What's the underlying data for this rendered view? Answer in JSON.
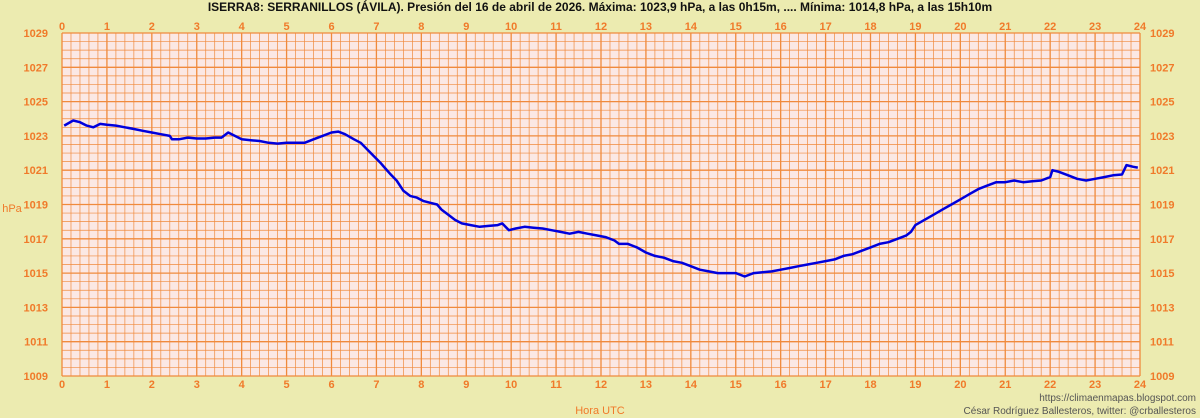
{
  "chart_data": {
    "type": "line",
    "title": "ISERRA8: SERRANILLOS (ÁVILA). Presión del 16 de abril de 2026. Máxima: 1023,9 hPa, a las 0h15m, .... Mínima: 1014,8 hPa, a las 15h10m",
    "xlabel": "Hora UTC",
    "ylabel": "hPa",
    "xlim": [
      0,
      24
    ],
    "ylim": [
      1009,
      1029
    ],
    "x_ticks": [
      "0",
      "1",
      "2",
      "3",
      "4",
      "5",
      "6",
      "7",
      "8",
      "9",
      "10",
      "11",
      "12",
      "13",
      "14",
      "15",
      "16",
      "17",
      "18",
      "19",
      "20",
      "21",
      "22",
      "23",
      "24"
    ],
    "y_ticks": [
      "1009",
      "1011",
      "1013",
      "1015",
      "1017",
      "1019",
      "1021",
      "1023",
      "1025",
      "1027",
      "1029"
    ],
    "grid": true,
    "series": [
      {
        "color": "#0000dd",
        "points": [
          [
            0.05,
            1023.6
          ],
          [
            0.25,
            1023.9
          ],
          [
            0.4,
            1023.8
          ],
          [
            0.55,
            1023.6
          ],
          [
            0.7,
            1023.5
          ],
          [
            0.85,
            1023.7
          ],
          [
            1.0,
            1023.65
          ],
          [
            1.2,
            1023.6
          ],
          [
            1.4,
            1023.5
          ],
          [
            1.6,
            1023.4
          ],
          [
            1.8,
            1023.3
          ],
          [
            2.0,
            1023.2
          ],
          [
            2.2,
            1023.1
          ],
          [
            2.4,
            1023.0
          ],
          [
            2.45,
            1022.8
          ],
          [
            2.6,
            1022.8
          ],
          [
            2.8,
            1022.9
          ],
          [
            3.0,
            1022.85
          ],
          [
            3.2,
            1022.85
          ],
          [
            3.4,
            1022.9
          ],
          [
            3.55,
            1022.9
          ],
          [
            3.7,
            1023.2
          ],
          [
            3.85,
            1023.0
          ],
          [
            4.0,
            1022.8
          ],
          [
            4.2,
            1022.75
          ],
          [
            4.4,
            1022.7
          ],
          [
            4.6,
            1022.6
          ],
          [
            4.8,
            1022.55
          ],
          [
            5.0,
            1022.6
          ],
          [
            5.2,
            1022.6
          ],
          [
            5.4,
            1022.6
          ],
          [
            5.6,
            1022.8
          ],
          [
            5.8,
            1023.0
          ],
          [
            6.0,
            1023.2
          ],
          [
            6.15,
            1023.25
          ],
          [
            6.3,
            1023.1
          ],
          [
            6.5,
            1022.8
          ],
          [
            6.65,
            1022.6
          ],
          [
            6.8,
            1022.2
          ],
          [
            6.95,
            1021.8
          ],
          [
            7.1,
            1021.4
          ],
          [
            7.2,
            1021.1
          ],
          [
            7.3,
            1020.8
          ],
          [
            7.45,
            1020.4
          ],
          [
            7.6,
            1019.8
          ],
          [
            7.75,
            1019.5
          ],
          [
            7.9,
            1019.4
          ],
          [
            8.05,
            1019.2
          ],
          [
            8.2,
            1019.1
          ],
          [
            8.35,
            1019.0
          ],
          [
            8.45,
            1018.7
          ],
          [
            8.6,
            1018.4
          ],
          [
            8.75,
            1018.1
          ],
          [
            8.9,
            1017.9
          ],
          [
            9.1,
            1017.8
          ],
          [
            9.3,
            1017.7
          ],
          [
            9.5,
            1017.75
          ],
          [
            9.7,
            1017.8
          ],
          [
            9.8,
            1017.9
          ],
          [
            9.95,
            1017.5
          ],
          [
            10.1,
            1017.6
          ],
          [
            10.3,
            1017.7
          ],
          [
            10.5,
            1017.65
          ],
          [
            10.7,
            1017.6
          ],
          [
            10.9,
            1017.5
          ],
          [
            11.1,
            1017.4
          ],
          [
            11.3,
            1017.3
          ],
          [
            11.5,
            1017.4
          ],
          [
            11.7,
            1017.3
          ],
          [
            11.9,
            1017.2
          ],
          [
            12.1,
            1017.1
          ],
          [
            12.3,
            1016.9
          ],
          [
            12.4,
            1016.7
          ],
          [
            12.6,
            1016.7
          ],
          [
            12.8,
            1016.5
          ],
          [
            13.0,
            1016.2
          ],
          [
            13.2,
            1016.0
          ],
          [
            13.4,
            1015.9
          ],
          [
            13.6,
            1015.7
          ],
          [
            13.8,
            1015.6
          ],
          [
            14.0,
            1015.4
          ],
          [
            14.2,
            1015.2
          ],
          [
            14.4,
            1015.1
          ],
          [
            14.6,
            1015.0
          ],
          [
            14.8,
            1015.0
          ],
          [
            15.0,
            1015.0
          ],
          [
            15.2,
            1014.8
          ],
          [
            15.4,
            1015.0
          ],
          [
            15.6,
            1015.05
          ],
          [
            15.8,
            1015.1
          ],
          [
            16.0,
            1015.2
          ],
          [
            16.2,
            1015.3
          ],
          [
            16.4,
            1015.4
          ],
          [
            16.6,
            1015.5
          ],
          [
            16.8,
            1015.6
          ],
          [
            17.0,
            1015.7
          ],
          [
            17.2,
            1015.8
          ],
          [
            17.4,
            1016.0
          ],
          [
            17.6,
            1016.1
          ],
          [
            17.8,
            1016.3
          ],
          [
            18.0,
            1016.5
          ],
          [
            18.2,
            1016.7
          ],
          [
            18.4,
            1016.8
          ],
          [
            18.6,
            1017.0
          ],
          [
            18.8,
            1017.2
          ],
          [
            18.9,
            1017.4
          ],
          [
            19.0,
            1017.8
          ],
          [
            19.2,
            1018.1
          ],
          [
            19.4,
            1018.4
          ],
          [
            19.6,
            1018.7
          ],
          [
            19.8,
            1019.0
          ],
          [
            20.0,
            1019.3
          ],
          [
            20.2,
            1019.6
          ],
          [
            20.4,
            1019.9
          ],
          [
            20.6,
            1020.1
          ],
          [
            20.8,
            1020.3
          ],
          [
            21.0,
            1020.3
          ],
          [
            21.2,
            1020.4
          ],
          [
            21.4,
            1020.3
          ],
          [
            21.6,
            1020.35
          ],
          [
            21.8,
            1020.4
          ],
          [
            22.0,
            1020.6
          ],
          [
            22.05,
            1021.0
          ],
          [
            22.2,
            1020.9
          ],
          [
            22.4,
            1020.7
          ],
          [
            22.6,
            1020.5
          ],
          [
            22.8,
            1020.4
          ],
          [
            23.0,
            1020.5
          ],
          [
            23.2,
            1020.6
          ],
          [
            23.4,
            1020.7
          ],
          [
            23.6,
            1020.75
          ],
          [
            23.7,
            1021.3
          ],
          [
            23.85,
            1021.2
          ],
          [
            23.95,
            1021.15
          ]
        ]
      }
    ]
  },
  "credits": {
    "line1": "https://climaenmapas.blogspot.com",
    "line2": "César Rodríguez Ballesteros, twitter: @crballesteros"
  }
}
